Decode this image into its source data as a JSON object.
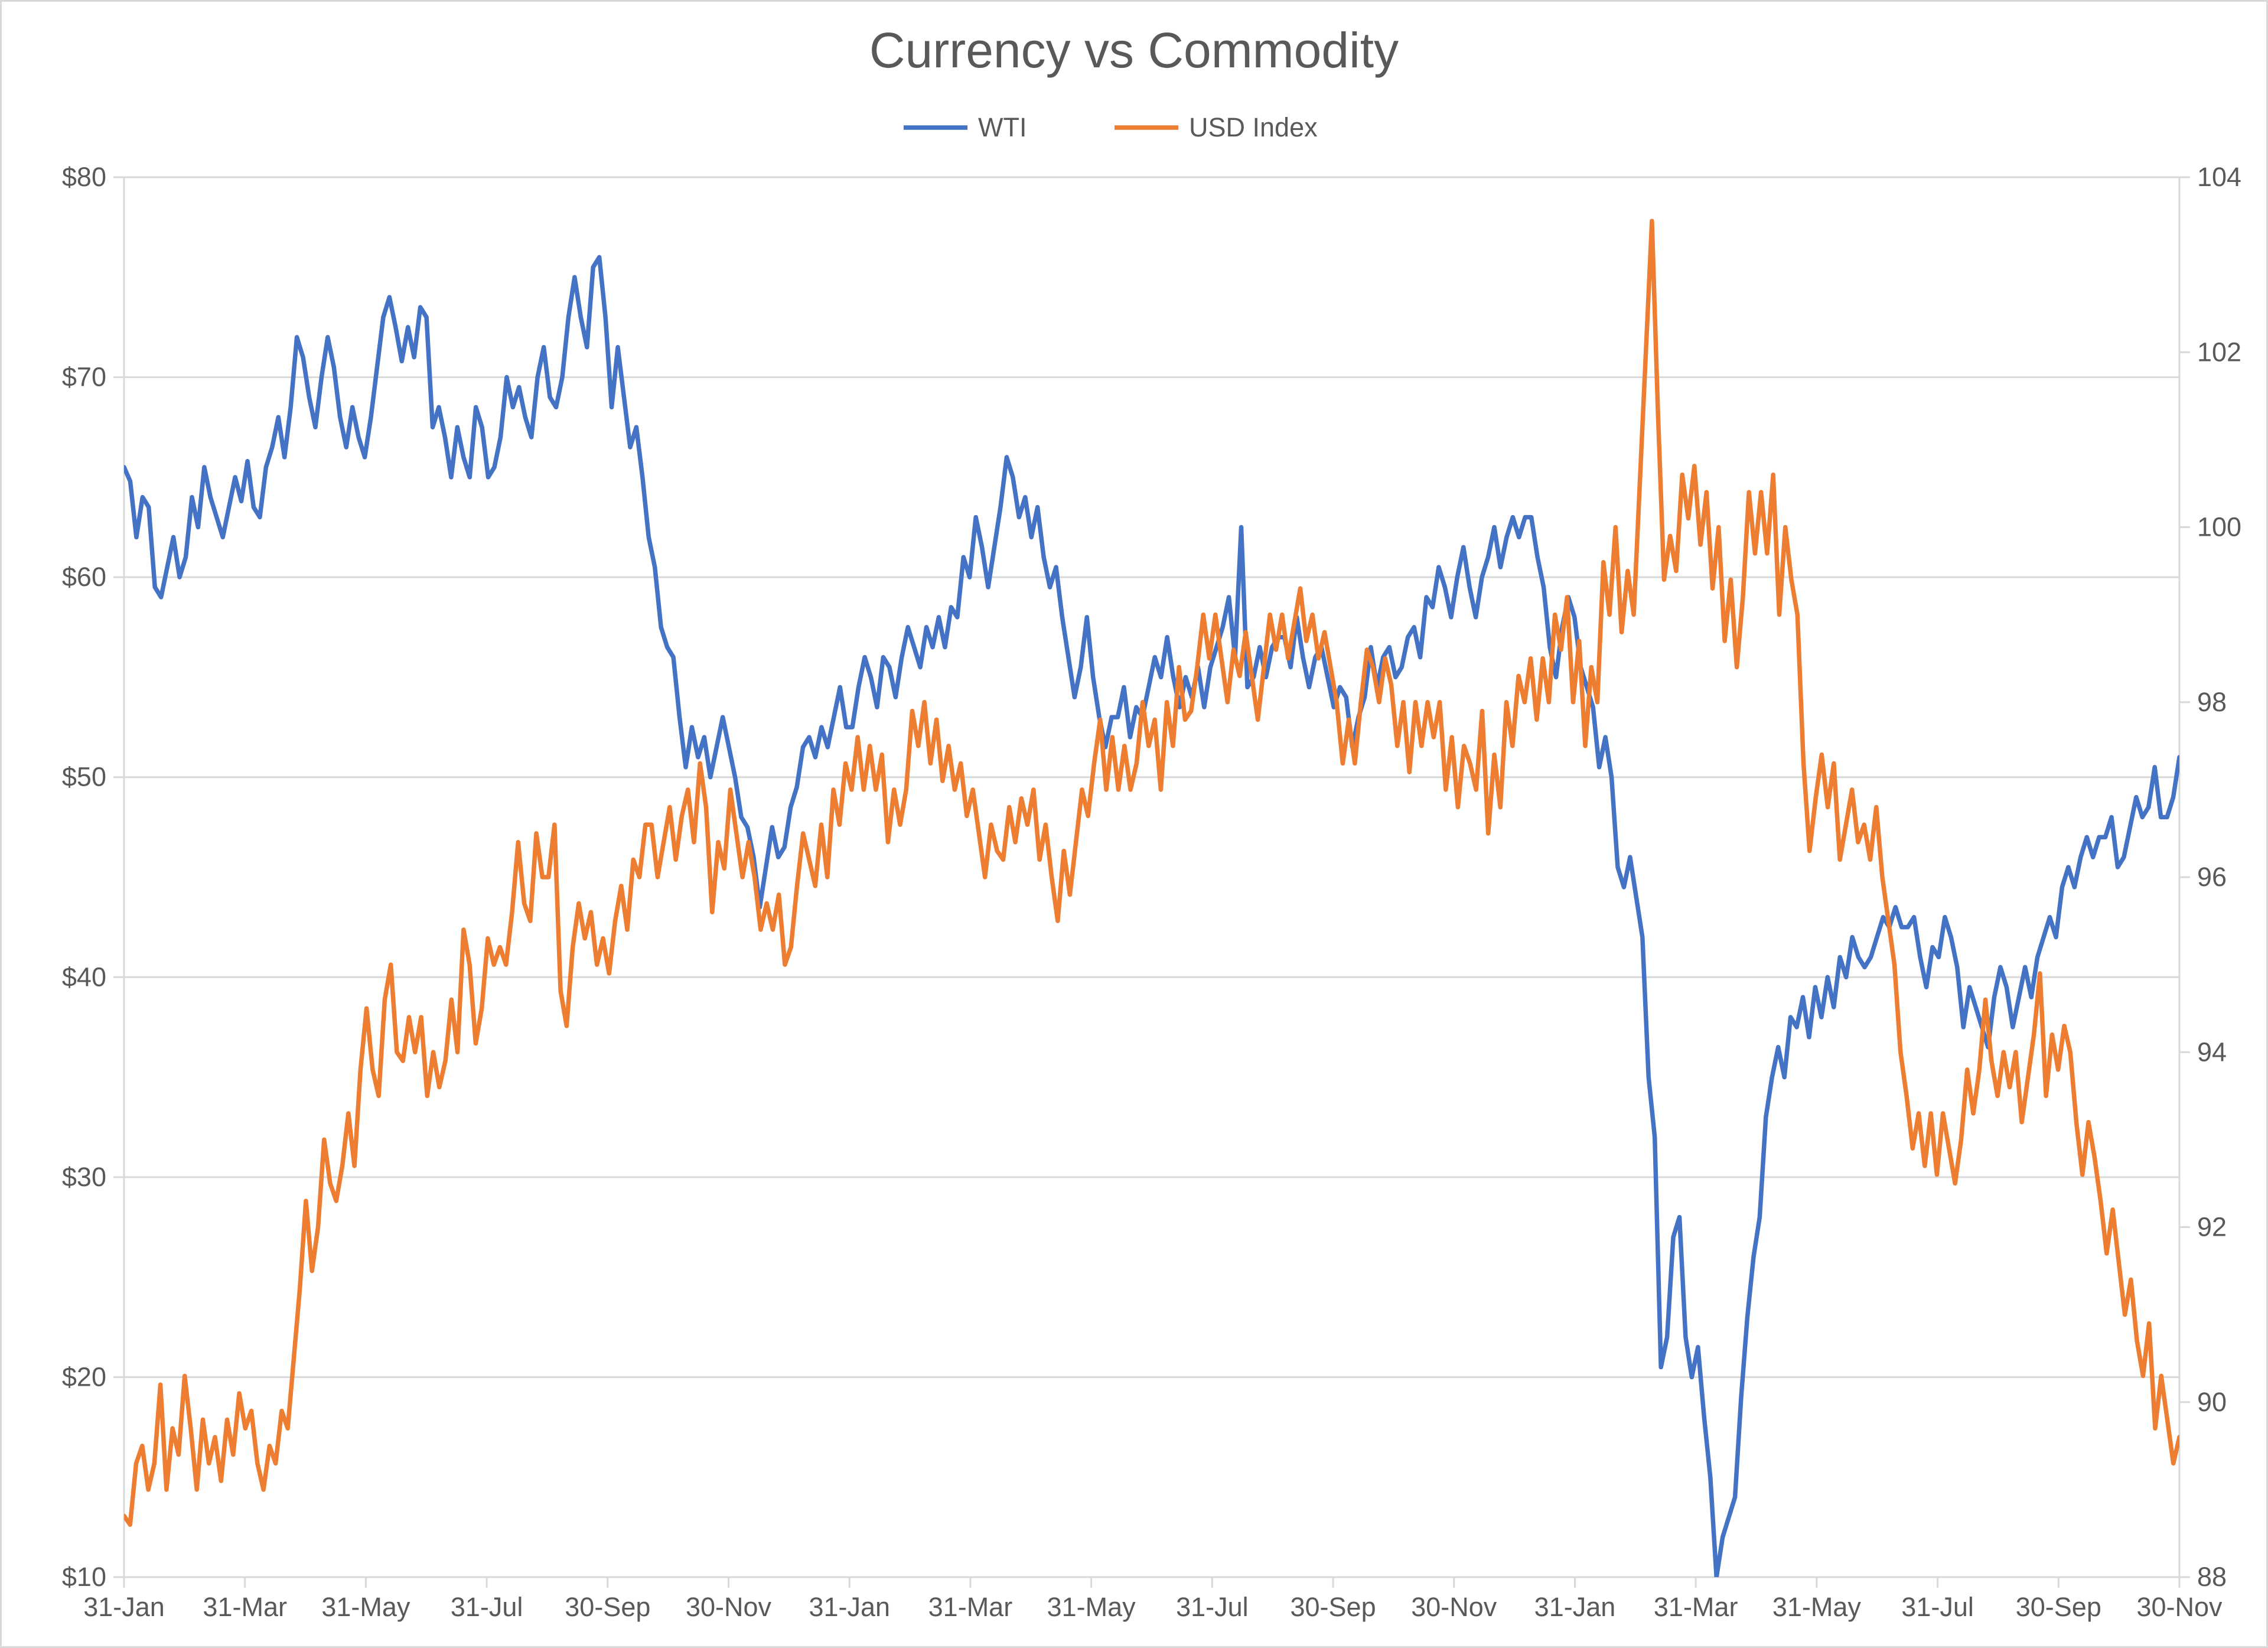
{
  "chart": {
    "type": "line-dual-axis",
    "title": "Currency vs Commodity",
    "title_fontsize": 28,
    "title_color": "#595959",
    "background_color": "#ffffff",
    "plot_background_color": "#ffffff",
    "border_color": "#d9d9d9",
    "grid_color": "#d9d9d9",
    "axis_text_color": "#595959",
    "axis_fontsize": 15,
    "legend": {
      "position": "top-center",
      "fontsize": 15,
      "items": [
        {
          "label": "WTI",
          "color": "#4472c4"
        },
        {
          "label": "USD Index",
          "color": "#ed7d31"
        }
      ]
    },
    "x_axis": {
      "tick_labels": [
        "31-Jan",
        "31-Mar",
        "31-May",
        "31-Jul",
        "30-Sep",
        "30-Nov",
        "31-Jan",
        "31-Mar",
        "31-May",
        "31-Jul",
        "30-Sep",
        "30-Nov",
        "31-Jan",
        "31-Mar",
        "31-May",
        "31-Jul",
        "30-Sep",
        "30-Nov"
      ]
    },
    "y_axis_left": {
      "min": 10,
      "max": 80,
      "step": 10,
      "prefix": "$",
      "tick_labels": [
        "$10",
        "$20",
        "$30",
        "$40",
        "$50",
        "$60",
        "$70",
        "$80"
      ]
    },
    "y_axis_right": {
      "min": 88,
      "max": 104,
      "step": 2,
      "tick_labels": [
        "88",
        "90",
        "92",
        "94",
        "96",
        "98",
        "100",
        "102",
        "104"
      ]
    },
    "series": [
      {
        "name": "WTI",
        "axis": "left",
        "color": "#4472c4",
        "line_width": 2.5,
        "values": [
          65.5,
          64.8,
          62.0,
          64.0,
          63.5,
          59.5,
          59.0,
          60.5,
          62.0,
          60.0,
          61.0,
          64.0,
          62.5,
          65.5,
          64.0,
          63.0,
          62.0,
          63.5,
          65.0,
          63.8,
          65.8,
          63.5,
          63.0,
          65.5,
          66.5,
          68.0,
          66.0,
          68.5,
          72.0,
          71.0,
          69.0,
          67.5,
          70.0,
          72.0,
          70.5,
          68.0,
          66.5,
          68.5,
          67.0,
          66.0,
          68.0,
          70.5,
          73.0,
          74.0,
          72.5,
          70.8,
          72.5,
          71.0,
          73.5,
          73.0,
          67.5,
          68.5,
          67.0,
          65.0,
          67.5,
          66.0,
          65.0,
          68.5,
          67.5,
          65.0,
          65.5,
          67.0,
          70.0,
          68.5,
          69.5,
          68.0,
          67.0,
          70.0,
          71.5,
          69.0,
          68.5,
          70.0,
          73.0,
          75.0,
          73.0,
          71.5,
          75.5,
          76.0,
          73.0,
          68.5,
          71.5,
          69.0,
          66.5,
          67.5,
          65.0,
          62.0,
          60.5,
          57.5,
          56.5,
          56.0,
          53.0,
          50.5,
          52.5,
          51.0,
          52.0,
          50.0,
          51.5,
          53.0,
          51.5,
          50.0,
          48.0,
          47.5,
          46.0,
          43.5,
          45.5,
          47.5,
          46.0,
          46.5,
          48.5,
          49.5,
          51.5,
          52.0,
          51.0,
          52.5,
          51.5,
          53.0,
          54.5,
          52.5,
          52.5,
          54.5,
          56.0,
          55.0,
          53.5,
          56.0,
          55.5,
          54.0,
          56.0,
          57.5,
          56.5,
          55.5,
          57.5,
          56.5,
          58.0,
          56.5,
          58.5,
          58.0,
          61.0,
          60.0,
          63.0,
          61.5,
          59.5,
          61.5,
          63.5,
          66.0,
          65.0,
          63.0,
          64.0,
          62.0,
          63.5,
          61.0,
          59.5,
          60.5,
          58.0,
          56.0,
          54.0,
          55.5,
          58.0,
          55.0,
          53.0,
          51.5,
          53.0,
          53.0,
          54.5,
          52.0,
          53.5,
          53.0,
          54.5,
          56.0,
          55.0,
          57.0,
          55.0,
          53.5,
          55.0,
          54.0,
          55.5,
          53.5,
          55.5,
          56.5,
          57.5,
          59.0,
          56.0,
          62.5,
          54.5,
          55.0,
          56.5,
          55.0,
          56.5,
          57.0,
          57.0,
          55.5,
          58.0,
          56.0,
          54.5,
          56.0,
          56.5,
          55.0,
          53.5,
          54.5,
          54.0,
          51.5,
          53.0,
          54.0,
          56.5,
          54.5,
          56.0,
          56.5,
          55.0,
          55.5,
          57.0,
          57.5,
          56.0,
          59.0,
          58.5,
          60.5,
          59.5,
          58.0,
          60.0,
          61.5,
          59.5,
          58.0,
          60.0,
          61.0,
          62.5,
          60.5,
          62.0,
          63.0,
          62.0,
          63.0,
          63.0,
          61.0,
          59.5,
          56.5,
          55.0,
          57.5,
          59.0,
          58.0,
          55.5,
          54.5,
          53.5,
          50.5,
          52.0,
          50.0,
          45.5,
          44.5,
          46.0,
          44.0,
          42.0,
          35.0,
          32.0,
          20.5,
          22.0,
          27.0,
          28.0,
          22.0,
          20.0,
          21.5,
          18.0,
          15.0,
          10.0,
          12.0,
          13.0,
          14.0,
          19.0,
          23.0,
          26.0,
          28.0,
          33.0,
          35.0,
          36.5,
          35.0,
          38.0,
          37.5,
          39.0,
          37.0,
          39.5,
          38.0,
          40.0,
          38.5,
          41.0,
          40.0,
          42.0,
          41.0,
          40.5,
          41.0,
          42.0,
          43.0,
          42.5,
          43.5,
          42.5,
          42.5,
          43.0,
          41.0,
          39.5,
          41.5,
          41.0,
          43.0,
          42.0,
          40.5,
          37.5,
          39.5,
          38.5,
          37.5,
          36.5,
          39.0,
          40.5,
          39.5,
          37.5,
          39.0,
          40.5,
          39.0,
          41.0,
          42.0,
          43.0,
          42.0,
          44.5,
          45.5,
          44.5,
          46.0,
          47.0,
          46.0,
          47.0,
          47.0,
          48.0,
          45.5,
          46.0,
          47.5,
          49.0,
          48.0,
          48.5,
          50.5,
          48.0,
          48.0,
          49.0,
          51.0
        ]
      },
      {
        "name": "USD Index",
        "axis": "right",
        "color": "#ed7d31",
        "line_width": 2.5,
        "values": [
          88.7,
          88.6,
          89.3,
          89.5,
          89.0,
          89.3,
          90.2,
          89.0,
          89.7,
          89.4,
          90.3,
          89.7,
          89.0,
          89.8,
          89.3,
          89.6,
          89.1,
          89.8,
          89.4,
          90.1,
          89.7,
          89.9,
          89.3,
          89.0,
          89.5,
          89.3,
          89.9,
          89.7,
          90.5,
          91.3,
          92.3,
          91.5,
          92.0,
          93.0,
          92.5,
          92.3,
          92.7,
          93.3,
          92.7,
          93.8,
          94.5,
          93.8,
          93.5,
          94.6,
          95.0,
          94.0,
          93.9,
          94.4,
          94.0,
          94.4,
          93.5,
          94.0,
          93.6,
          93.9,
          94.6,
          94.0,
          95.4,
          95.0,
          94.1,
          94.5,
          95.3,
          95.0,
          95.2,
          95.0,
          95.6,
          96.4,
          95.7,
          95.5,
          96.5,
          96.0,
          96.0,
          96.6,
          94.7,
          94.3,
          95.2,
          95.7,
          95.3,
          95.6,
          95.0,
          95.3,
          94.9,
          95.5,
          95.9,
          95.4,
          96.2,
          96.0,
          96.6,
          96.6,
          96.0,
          96.4,
          96.8,
          96.2,
          96.7,
          97.0,
          96.4,
          97.3,
          96.8,
          95.6,
          96.4,
          96.1,
          97.0,
          96.5,
          96.0,
          96.4,
          96.0,
          95.4,
          95.7,
          95.4,
          95.8,
          95.0,
          95.2,
          95.9,
          96.5,
          96.2,
          95.9,
          96.6,
          96.0,
          97.0,
          96.6,
          97.3,
          97.0,
          97.6,
          97.0,
          97.5,
          97.0,
          97.4,
          96.4,
          97.0,
          96.6,
          97.0,
          97.9,
          97.5,
          98.0,
          97.3,
          97.8,
          97.1,
          97.5,
          97.0,
          97.3,
          96.7,
          97.0,
          96.5,
          96.0,
          96.6,
          96.3,
          96.2,
          96.8,
          96.4,
          96.9,
          96.6,
          97.0,
          96.2,
          96.6,
          96.0,
          95.5,
          96.3,
          95.8,
          96.4,
          97.0,
          96.7,
          97.3,
          97.8,
          97.0,
          97.6,
          97.0,
          97.5,
          97.0,
          97.3,
          98.0,
          97.5,
          97.8,
          97.0,
          98.0,
          97.5,
          98.4,
          97.8,
          97.9,
          98.4,
          99.0,
          98.5,
          99.0,
          98.5,
          98.0,
          98.6,
          98.3,
          98.8,
          98.3,
          97.8,
          98.4,
          99.0,
          98.6,
          99.0,
          98.5,
          98.9,
          99.3,
          98.7,
          99.0,
          98.5,
          98.8,
          98.4,
          98.0,
          97.3,
          97.8,
          97.3,
          98.0,
          98.6,
          98.4,
          98.0,
          98.5,
          98.2,
          97.5,
          98.0,
          97.2,
          98.0,
          97.5,
          98.0,
          97.6,
          98.0,
          97.0,
          97.6,
          96.8,
          97.5,
          97.3,
          97.0,
          97.9,
          96.5,
          97.4,
          96.8,
          98.0,
          97.5,
          98.3,
          98.0,
          98.5,
          97.8,
          98.5,
          98.0,
          99.0,
          98.6,
          99.2,
          98.0,
          98.7,
          97.5,
          98.4,
          98.0,
          99.6,
          99.0,
          100.0,
          98.8,
          99.5,
          99.0,
          100.5,
          102.0,
          103.5,
          101.3,
          99.4,
          99.9,
          99.5,
          100.6,
          100.1,
          100.7,
          99.8,
          100.4,
          99.3,
          100.0,
          98.7,
          99.4,
          98.4,
          99.2,
          100.4,
          99.7,
          100.4,
          99.7,
          100.6,
          99.0,
          100.0,
          99.4,
          99.0,
          97.3,
          96.3,
          96.9,
          97.4,
          96.8,
          97.3,
          96.2,
          96.6,
          97.0,
          96.4,
          96.6,
          96.2,
          96.8,
          96.0,
          95.5,
          95.0,
          94.0,
          93.5,
          92.9,
          93.3,
          92.7,
          93.3,
          92.6,
          93.3,
          92.9,
          92.5,
          93.0,
          93.8,
          93.3,
          93.8,
          94.6,
          93.9,
          93.5,
          94.0,
          93.6,
          94.0,
          93.2,
          93.7,
          94.2,
          94.9,
          93.5,
          94.2,
          93.8,
          94.3,
          94.0,
          93.2,
          92.6,
          93.2,
          92.8,
          92.3,
          91.7,
          92.2,
          91.6,
          91.0,
          91.4,
          90.7,
          90.3,
          90.9,
          89.7,
          90.3,
          89.8,
          89.3,
          89.6
        ]
      }
    ]
  }
}
